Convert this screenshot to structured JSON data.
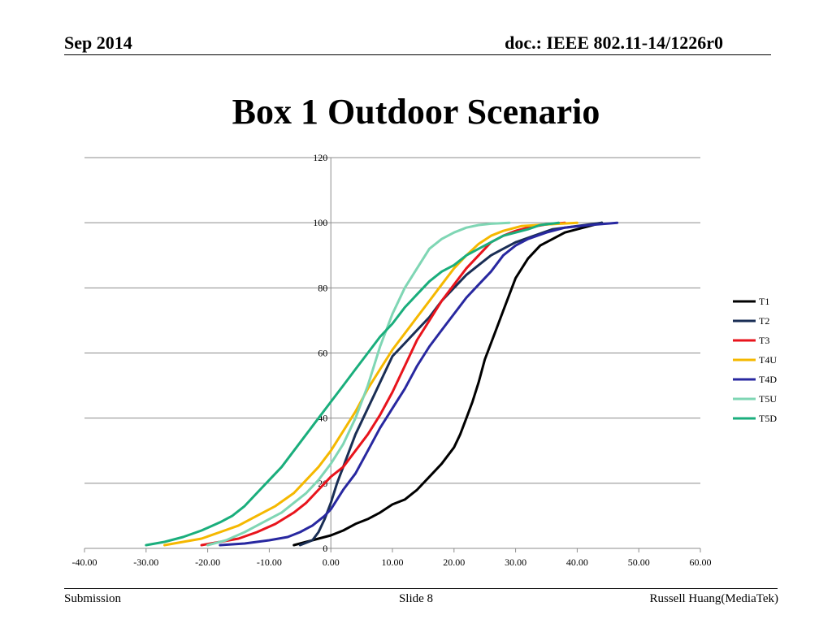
{
  "header": {
    "date": "Sep 2014",
    "doc": "doc.: IEEE 802.11-14/1226r0"
  },
  "slide_title": "Box 1 Outdoor Scenario",
  "footer": {
    "left": "Submission",
    "center": "Slide 8",
    "right": "Russell Huang(MediaTek)"
  },
  "chart_data": {
    "type": "line",
    "title": "",
    "xlabel": "",
    "ylabel": "",
    "xlim": [
      -40,
      60
    ],
    "ylim": [
      0,
      120
    ],
    "x_ticks": [
      "-40.00",
      "-30.00",
      "-20.00",
      "-10.00",
      "0.00",
      "10.00",
      "20.00",
      "30.00",
      "40.00",
      "50.00",
      "60.00"
    ],
    "y_ticks": [
      "0",
      "20",
      "40",
      "60",
      "80",
      "100",
      "120"
    ],
    "grid": "horizontal",
    "legend_position": "right",
    "series": [
      {
        "name": "T1",
        "color": "#000000",
        "points": [
          [
            -6,
            1
          ],
          [
            -4,
            2
          ],
          [
            -2,
            3
          ],
          [
            0,
            4
          ],
          [
            2,
            5.5
          ],
          [
            4,
            7.5
          ],
          [
            6,
            9
          ],
          [
            8,
            11
          ],
          [
            10,
            13.5
          ],
          [
            12,
            15
          ],
          [
            14,
            18
          ],
          [
            16,
            22
          ],
          [
            18,
            26
          ],
          [
            20,
            31
          ],
          [
            21,
            35
          ],
          [
            22,
            40
          ],
          [
            23,
            45
          ],
          [
            24,
            51
          ],
          [
            25,
            58
          ],
          [
            26,
            63
          ],
          [
            27,
            68
          ],
          [
            28,
            73
          ],
          [
            29,
            78
          ],
          [
            30,
            83
          ],
          [
            31,
            86
          ],
          [
            32,
            89
          ],
          [
            34,
            93
          ],
          [
            36,
            95
          ],
          [
            38,
            97
          ],
          [
            40,
            98
          ],
          [
            42,
            99
          ],
          [
            44,
            100
          ]
        ]
      },
      {
        "name": "T2",
        "color": "#1a2e55",
        "points": [
          [
            -5,
            1
          ],
          [
            -3,
            2.5
          ],
          [
            -2,
            5
          ],
          [
            -1,
            9
          ],
          [
            0,
            14
          ],
          [
            1,
            20
          ],
          [
            2,
            25
          ],
          [
            3,
            30
          ],
          [
            4,
            35
          ],
          [
            5,
            39
          ],
          [
            6,
            43
          ],
          [
            7,
            47
          ],
          [
            8,
            51
          ],
          [
            9,
            55
          ],
          [
            10,
            59
          ],
          [
            12,
            63
          ],
          [
            14,
            67
          ],
          [
            16,
            71
          ],
          [
            18,
            76
          ],
          [
            20,
            80
          ],
          [
            22,
            84
          ],
          [
            24,
            87
          ],
          [
            26,
            90
          ],
          [
            28,
            92
          ],
          [
            30,
            94
          ],
          [
            33,
            96
          ],
          [
            36,
            98
          ],
          [
            40,
            99
          ],
          [
            44,
            100
          ]
        ]
      },
      {
        "name": "T3",
        "color": "#e8141c",
        "points": [
          [
            -21,
            1
          ],
          [
            -18,
            2
          ],
          [
            -15,
            3
          ],
          [
            -12,
            5
          ],
          [
            -9,
            7.5
          ],
          [
            -6,
            11
          ],
          [
            -4,
            14
          ],
          [
            -2,
            18
          ],
          [
            0,
            22
          ],
          [
            2,
            25
          ],
          [
            4,
            30
          ],
          [
            6,
            35
          ],
          [
            8,
            41
          ],
          [
            10,
            48
          ],
          [
            12,
            56
          ],
          [
            14,
            64
          ],
          [
            16,
            70
          ],
          [
            18,
            76
          ],
          [
            20,
            81
          ],
          [
            22,
            86
          ],
          [
            24,
            90
          ],
          [
            26,
            94
          ],
          [
            28,
            96
          ],
          [
            30,
            97.5
          ],
          [
            32,
            98.5
          ],
          [
            35,
            99.5
          ],
          [
            38,
            100
          ]
        ]
      },
      {
        "name": "T4U",
        "color": "#f5b800",
        "points": [
          [
            -27,
            1
          ],
          [
            -24,
            2
          ],
          [
            -21,
            3
          ],
          [
            -18,
            5
          ],
          [
            -15,
            7
          ],
          [
            -12,
            10
          ],
          [
            -9,
            13
          ],
          [
            -6,
            17
          ],
          [
            -4,
            21
          ],
          [
            -2,
            25
          ],
          [
            0,
            30
          ],
          [
            2,
            36
          ],
          [
            4,
            42
          ],
          [
            6,
            49
          ],
          [
            8,
            55
          ],
          [
            10,
            61
          ],
          [
            12,
            66
          ],
          [
            14,
            71
          ],
          [
            16,
            76
          ],
          [
            18,
            81
          ],
          [
            20,
            86
          ],
          [
            22,
            90
          ],
          [
            24,
            93.5
          ],
          [
            26,
            96
          ],
          [
            28,
            97.5
          ],
          [
            31,
            99
          ],
          [
            35,
            99.5
          ],
          [
            40,
            100
          ]
        ]
      },
      {
        "name": "T4D",
        "color": "#2828a0",
        "points": [
          [
            -18,
            1
          ],
          [
            -14,
            1.5
          ],
          [
            -10,
            2.5
          ],
          [
            -7,
            3.5
          ],
          [
            -5,
            5
          ],
          [
            -3,
            7
          ],
          [
            -1,
            10
          ],
          [
            0,
            12
          ],
          [
            1,
            15
          ],
          [
            2,
            18
          ],
          [
            4,
            23
          ],
          [
            6,
            30
          ],
          [
            8,
            37
          ],
          [
            10,
            43
          ],
          [
            12,
            49
          ],
          [
            14,
            56
          ],
          [
            16,
            62
          ],
          [
            18,
            67
          ],
          [
            20,
            72
          ],
          [
            22,
            77
          ],
          [
            24,
            81
          ],
          [
            26,
            85
          ],
          [
            28,
            90
          ],
          [
            30,
            93
          ],
          [
            32,
            95
          ],
          [
            35,
            97
          ],
          [
            38,
            98.5
          ],
          [
            42,
            99.3
          ],
          [
            46.5,
            100
          ]
        ]
      },
      {
        "name": "T5U",
        "color": "#7fd6b4",
        "points": [
          [
            -20,
            1
          ],
          [
            -17,
            2.5
          ],
          [
            -14,
            5
          ],
          [
            -11,
            8
          ],
          [
            -8,
            11
          ],
          [
            -6,
            14
          ],
          [
            -4,
            17
          ],
          [
            -2,
            21
          ],
          [
            0,
            26
          ],
          [
            2,
            32
          ],
          [
            4,
            40
          ],
          [
            6,
            50
          ],
          [
            8,
            62
          ],
          [
            10,
            72
          ],
          [
            12,
            80
          ],
          [
            14,
            86
          ],
          [
            16,
            92
          ],
          [
            18,
            95
          ],
          [
            20,
            97
          ],
          [
            22,
            98.5
          ],
          [
            24,
            99.3
          ],
          [
            26,
            99.7
          ],
          [
            29,
            100
          ]
        ]
      },
      {
        "name": "T5D",
        "color": "#1aae7c",
        "points": [
          [
            -30,
            1
          ],
          [
            -27,
            2
          ],
          [
            -24,
            3.5
          ],
          [
            -21,
            5.5
          ],
          [
            -18,
            8
          ],
          [
            -16,
            10
          ],
          [
            -14,
            13
          ],
          [
            -12,
            17
          ],
          [
            -10,
            21
          ],
          [
            -8,
            25
          ],
          [
            -6,
            30
          ],
          [
            -4,
            35
          ],
          [
            -2,
            40
          ],
          [
            0,
            45
          ],
          [
            2,
            50
          ],
          [
            4,
            55
          ],
          [
            6,
            60
          ],
          [
            8,
            65
          ],
          [
            10,
            69
          ],
          [
            12,
            74
          ],
          [
            14,
            78
          ],
          [
            16,
            82
          ],
          [
            18,
            85
          ],
          [
            20,
            87
          ],
          [
            22,
            90
          ],
          [
            24,
            92
          ],
          [
            26,
            94
          ],
          [
            28,
            96
          ],
          [
            30,
            97
          ],
          [
            32,
            98
          ],
          [
            34,
            99.3
          ],
          [
            37,
            100
          ]
        ]
      }
    ]
  }
}
